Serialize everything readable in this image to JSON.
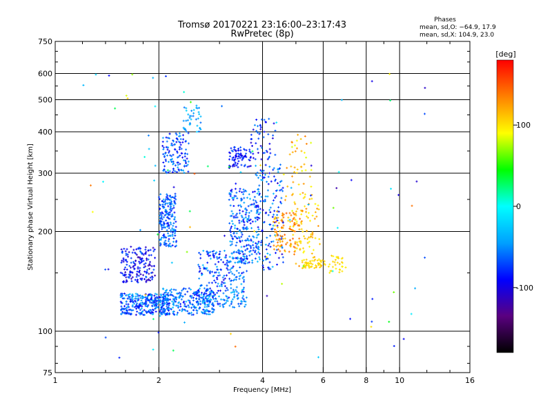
{
  "chart_data": {
    "type": "scatter",
    "title": "Tromsø 20170221 23:16:00–23:17:43",
    "subtitle": "RwPretec (8p)",
    "phase_box": {
      "header": "Phases",
      "line_o": "mean, sd,O: −64.9, 17.9",
      "line_x": "mean, sd,X: 104.9, 23.0"
    },
    "xlabel": "Frequency [MHz]",
    "ylabel": "Stationary phase Virtual Height [km]",
    "xscale": "log",
    "yscale": "log",
    "xlim": [
      1,
      16
    ],
    "ylim": [
      75,
      750
    ],
    "grid": true,
    "x_major_ticks": [
      {
        "value": 1,
        "label": "1"
      },
      {
        "value": 2,
        "label": "2"
      },
      {
        "value": 4,
        "label": "4"
      },
      {
        "value": 6,
        "label": "6"
      },
      {
        "value": 8,
        "label": "8"
      },
      {
        "value": 10,
        "label": "10"
      },
      {
        "value": 16,
        "label": "16"
      }
    ],
    "y_major_ticks": [
      {
        "value": 75,
        "label": "75"
      },
      {
        "value": 100,
        "label": "100"
      },
      {
        "value": 200,
        "label": "200"
      },
      {
        "value": 300,
        "label": "300"
      },
      {
        "value": 400,
        "label": "400"
      },
      {
        "value": 500,
        "label": "500"
      },
      {
        "value": 600,
        "label": "600"
      },
      {
        "value": 750,
        "label": "750"
      }
    ],
    "colorbar": {
      "label": "[deg]",
      "range": [
        -180,
        180
      ],
      "ticks": [
        {
          "value": 100,
          "label": "100"
        },
        {
          "value": 0,
          "label": "0"
        },
        {
          "value": -100,
          "label": "-100"
        }
      ],
      "colors": [
        "#000000",
        "#5a0080",
        "#0000ff",
        "#00a0ff",
        "#00ffff",
        "#00ff00",
        "#ffff00",
        "#ff8000",
        "#ff0000"
      ]
    },
    "clusters": [
      {
        "x": [
          1.55,
          2.15
        ],
        "y": [
          112,
          130
        ],
        "phase": [
          -100,
          -30
        ],
        "n": 330
      },
      {
        "x": [
          2.05,
          2.9
        ],
        "y": [
          112,
          135
        ],
        "phase": [
          -90,
          -30
        ],
        "n": 260
      },
      {
        "x": [
          1.55,
          1.95
        ],
        "y": [
          140,
          180
        ],
        "phase": [
          -120,
          -60
        ],
        "n": 170
      },
      {
        "x": [
          2.0,
          2.25
        ],
        "y": [
          180,
          260
        ],
        "phase": [
          -90,
          -40
        ],
        "n": 190
      },
      {
        "x": [
          2.05,
          2.45
        ],
        "y": [
          300,
          400
        ],
        "phase": [
          -100,
          -40
        ],
        "n": 120
      },
      {
        "x": [
          2.35,
          2.65
        ],
        "y": [
          400,
          480
        ],
        "phase": [
          -60,
          -20
        ],
        "n": 40
      },
      {
        "x": [
          2.6,
          3.6
        ],
        "y": [
          120,
          175
        ],
        "phase": [
          -100,
          -30
        ],
        "n": 230
      },
      {
        "x": [
          3.2,
          3.9
        ],
        "y": [
          160,
          270
        ],
        "phase": [
          -100,
          -30
        ],
        "n": 240
      },
      {
        "x": [
          3.2,
          3.7
        ],
        "y": [
          310,
          360
        ],
        "phase": [
          -110,
          -60
        ],
        "n": 80
      },
      {
        "x": [
          3.8,
          4.6
        ],
        "y": [
          150,
          320
        ],
        "phase": [
          -110,
          -30
        ],
        "n": 160
      },
      {
        "x": [
          3.7,
          4.4
        ],
        "y": [
          330,
          440
        ],
        "phase": [
          -110,
          -50
        ],
        "n": 50
      },
      {
        "x": [
          4.3,
          5.2
        ],
        "y": [
          170,
          230
        ],
        "phase": [
          100,
          150
        ],
        "n": 110
      },
      {
        "x": [
          4.9,
          5.9
        ],
        "y": [
          155,
          260
        ],
        "phase": [
          90,
          130
        ],
        "n": 80
      },
      {
        "x": [
          5.2,
          6.1
        ],
        "y": [
          155,
          165
        ],
        "phase": [
          95,
          115
        ],
        "n": 50
      },
      {
        "x": [
          6.2,
          7.0
        ],
        "y": [
          150,
          170
        ],
        "phase": [
          90,
          110
        ],
        "n": 30
      },
      {
        "x": [
          4.6,
          5.6
        ],
        "y": [
          230,
          400
        ],
        "phase": [
          80,
          140
        ],
        "n": 45
      },
      {
        "x": [
          3.0,
          3.6
        ],
        "y": [
          118,
          128
        ],
        "phase": [
          -60,
          -40
        ],
        "n": 25
      },
      {
        "x": [
          1.2,
          12.0
        ],
        "y": [
          80,
          600
        ],
        "phase": [
          -120,
          150
        ],
        "n": 90
      }
    ]
  }
}
